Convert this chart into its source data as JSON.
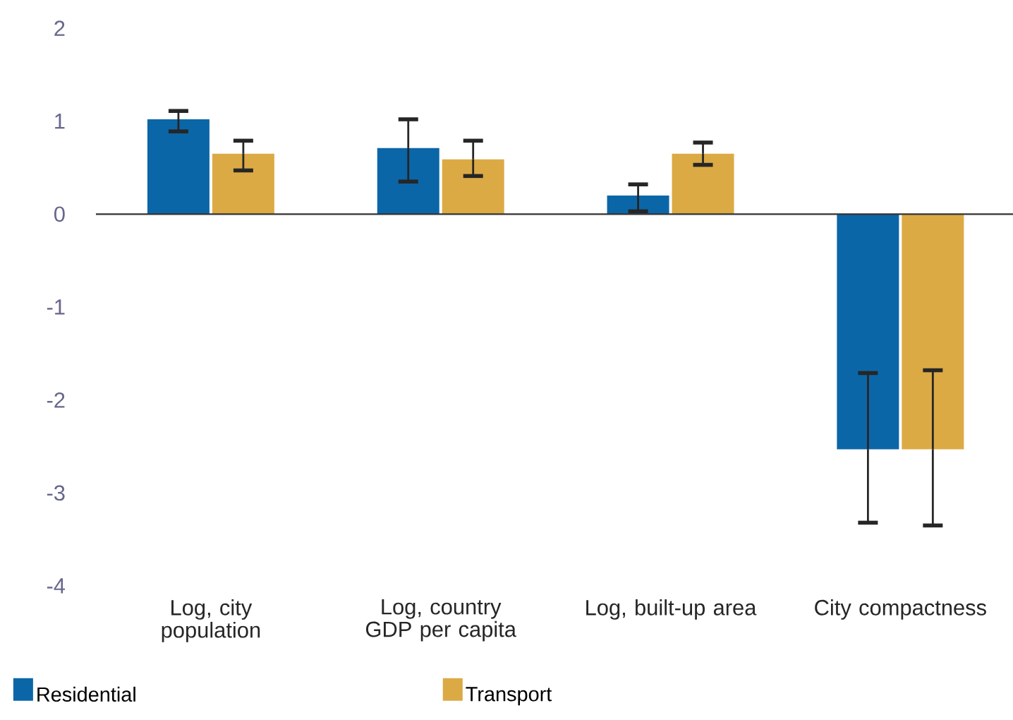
{
  "chart_data": {
    "type": "bar",
    "categories": [
      "Log, city population",
      "Log, country GDP per capita",
      "Log, built-up area",
      "City compactness"
    ],
    "series": [
      {
        "name": "Residential",
        "color": "#0b66a8",
        "values": [
          1.02,
          0.71,
          0.2,
          -2.53
        ],
        "errors": [
          [
            0.89,
            1.11
          ],
          [
            0.35,
            1.02
          ],
          [
            0.03,
            0.32
          ],
          [
            -3.32,
            -1.71
          ]
        ]
      },
      {
        "name": "Transport",
        "color": "#dcaa44",
        "values": [
          0.65,
          0.59,
          0.65,
          -2.53
        ],
        "errors": [
          [
            0.47,
            0.79
          ],
          [
            0.41,
            0.79
          ],
          [
            0.53,
            0.77
          ],
          [
            -3.35,
            -1.68
          ]
        ]
      }
    ],
    "ref_lines": [
      {
        "axis": "y",
        "value": 0
      }
    ],
    "ylim": [
      -4,
      2
    ],
    "yticks": [
      -4,
      -3,
      -2,
      -1,
      0,
      1,
      2
    ],
    "grid": false,
    "legend": "bottom"
  }
}
